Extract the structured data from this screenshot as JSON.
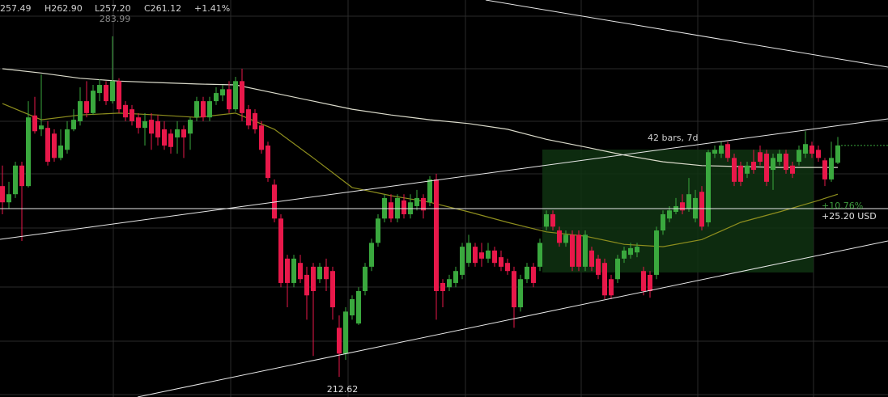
{
  "chart_data": {
    "type": "candlestick",
    "header": {
      "open": "257.49",
      "high": "H262.90",
      "low": "L257.20",
      "close": "C261.12",
      "change": "+1.41%"
    },
    "annotations": [
      "283.99",
      "212.62"
    ],
    "measure": {
      "label": "42 bars, 7d",
      "change_pct": "+10.76%",
      "change": "+25.20 USD"
    },
    "ylim": [
      208.4,
      291.6
    ],
    "up_color": "#3aa83e",
    "down_color": "#e8184a",
    "open": [
      252.6,
      249.2,
      250.9,
      256.9,
      252.6,
      267.4,
      264.5,
      264.8,
      263.6,
      258.5,
      260.2,
      264.5,
      266.2,
      270.4,
      267.9,
      272.1,
      273.8,
      270.4,
      274.6,
      269.6,
      268.7,
      267.0,
      264.8,
      266.5,
      266.2,
      264.5,
      263.6,
      262.8,
      264.5,
      263.6,
      267.0,
      270.4,
      267.0,
      270.4,
      271.6,
      272.9,
      268.7,
      274.6,
      268.7,
      267.9,
      265.3,
      261.1,
      252.9,
      245.8,
      237.4,
      232.3,
      236.5,
      234.0,
      235.7,
      233.1,
      235.7,
      234.8,
      222.9,
      217.5,
      225.5,
      223.8,
      230.6,
      235.7,
      240.7,
      245.8,
      249.2,
      245.8,
      249.6,
      246.7,
      248.4,
      250.1,
      249.2,
      254.0,
      232.3,
      231.4,
      232.3,
      234.0,
      236.5,
      239.9,
      238.7,
      237.4,
      239.1,
      237.7,
      236.5,
      234.8,
      227.2,
      233.1,
      235.7,
      235.7,
      244.1,
      246.7,
      243.3,
      240.7,
      242.4,
      242.4,
      235.7,
      239.1,
      237.4,
      236.5,
      233.1,
      233.1,
      237.4,
      238.2,
      238.7,
      234.8,
      234.0,
      234.0,
      243.3,
      245.8,
      247.2,
      249.2,
      247.9,
      245.8,
      251.4,
      245.0,
      259.4,
      259.4,
      261.4,
      258.5,
      256.9,
      255.2,
      257.7,
      259.7,
      259.4,
      256.0,
      257.7,
      259.4,
      256.9,
      257.7,
      259.4,
      261.1,
      260.2,
      258.0,
      254.0,
      257.49
    ],
    "high": [
      256.9,
      253.5,
      257.7,
      257.7,
      270.4,
      271.3,
      276.0,
      266.2,
      264.5,
      264.5,
      266.2,
      268.7,
      273.3,
      274.6,
      273.8,
      275.0,
      274.6,
      283.99,
      275.2,
      270.4,
      269.6,
      267.9,
      267.9,
      267.9,
      267.5,
      266.2,
      264.5,
      266.2,
      265.3,
      267.0,
      271.3,
      271.3,
      271.3,
      273.3,
      273.8,
      274.6,
      275.5,
      277.2,
      269.6,
      268.7,
      266.2,
      261.9,
      254.0,
      246.7,
      238.2,
      238.2,
      238.2,
      235.7,
      236.5,
      236.5,
      237.4,
      235.7,
      225.5,
      227.2,
      229.7,
      231.4,
      236.5,
      241.6,
      246.7,
      250.9,
      250.9,
      250.9,
      250.9,
      250.9,
      251.8,
      250.9,
      254.7,
      255.2,
      233.1,
      234.0,
      235.7,
      240.7,
      242.4,
      240.7,
      240.7,
      240.7,
      239.9,
      239.1,
      237.4,
      235.7,
      234.0,
      236.5,
      236.5,
      241.6,
      247.5,
      247.5,
      244.1,
      243.3,
      243.3,
      243.3,
      243.3,
      239.9,
      238.2,
      237.4,
      234.0,
      238.2,
      239.9,
      240.7,
      240.7,
      235.7,
      234.8,
      244.1,
      247.5,
      248.4,
      250.1,
      250.9,
      254.3,
      251.8,
      252.6,
      260.2,
      261.1,
      261.9,
      261.9,
      259.4,
      257.7,
      257.7,
      260.2,
      261.1,
      260.2,
      259.4,
      260.2,
      260.2,
      257.7,
      261.1,
      264.1,
      261.9,
      261.1,
      258.5,
      261.9,
      262.9
    ],
    "low": [
      246.7,
      247.9,
      250.1,
      241.1,
      252.3,
      263.6,
      263.1,
      256.9,
      257.7,
      258.0,
      259.4,
      264.1,
      265.3,
      267.0,
      267.5,
      270.4,
      269.6,
      269.9,
      267.9,
      266.2,
      265.3,
      263.6,
      261.1,
      260.2,
      261.1,
      260.2,
      259.4,
      259.4,
      258.5,
      260.2,
      266.2,
      266.2,
      266.2,
      269.6,
      270.4,
      267.9,
      268.2,
      266.2,
      264.5,
      263.6,
      259.4,
      253.5,
      245.0,
      231.4,
      227.2,
      231.4,
      232.3,
      224.6,
      217.0,
      232.3,
      230.6,
      224.6,
      212.62,
      216.2,
      224.6,
      223.5,
      229.7,
      234.8,
      239.9,
      245.0,
      245.0,
      245.0,
      245.8,
      245.8,
      247.5,
      245.8,
      248.4,
      224.6,
      227.2,
      230.6,
      231.4,
      233.1,
      235.7,
      235.7,
      235.7,
      236.5,
      235.7,
      234.8,
      234.0,
      222.9,
      226.3,
      232.3,
      231.4,
      234.8,
      243.3,
      243.3,
      239.9,
      239.9,
      234.8,
      234.8,
      234.8,
      234.8,
      233.1,
      228.9,
      228.9,
      232.3,
      236.5,
      237.4,
      237.7,
      229.7,
      229.2,
      233.1,
      242.4,
      245.0,
      246.7,
      246.7,
      247.2,
      245.0,
      243.3,
      244.1,
      258.5,
      258.5,
      257.7,
      252.6,
      252.6,
      254.3,
      255.2,
      256.9,
      252.6,
      251.8,
      256.9,
      255.2,
      254.3,
      256.9,
      258.5,
      258.5,
      257.7,
      252.6,
      253.5,
      257.2
    ],
    "close": [
      249.2,
      250.9,
      256.9,
      252.6,
      267.0,
      264.1,
      265.3,
      257.7,
      258.5,
      261.1,
      264.5,
      266.5,
      270.4,
      267.9,
      272.6,
      273.8,
      270.4,
      274.6,
      268.7,
      267.0,
      266.2,
      264.8,
      266.2,
      263.6,
      262.8,
      261.1,
      260.8,
      264.5,
      262.8,
      266.5,
      270.4,
      267.0,
      270.4,
      272.1,
      272.9,
      268.7,
      274.6,
      267.9,
      265.3,
      264.5,
      260.2,
      254.3,
      245.8,
      232.3,
      232.3,
      237.4,
      233.1,
      229.7,
      230.6,
      235.7,
      233.1,
      227.2,
      217.5,
      226.3,
      228.9,
      230.6,
      235.7,
      240.7,
      245.8,
      250.1,
      245.8,
      250.1,
      246.7,
      249.2,
      250.1,
      247.5,
      254.0,
      230.6,
      230.6,
      233.1,
      234.8,
      239.9,
      240.7,
      236.5,
      237.4,
      239.1,
      236.5,
      235.7,
      234.8,
      227.2,
      233.1,
      235.7,
      232.3,
      240.7,
      246.7,
      244.1,
      240.7,
      242.4,
      235.7,
      235.7,
      242.4,
      235.7,
      234.0,
      229.7,
      229.7,
      237.4,
      239.1,
      239.6,
      239.9,
      230.6,
      230.6,
      243.3,
      246.7,
      247.5,
      248.4,
      247.5,
      250.9,
      250.1,
      244.1,
      259.7,
      260.2,
      261.1,
      258.5,
      253.5,
      253.5,
      256.9,
      256.0,
      257.7,
      253.5,
      258.5,
      259.4,
      256.0,
      255.2,
      260.2,
      261.4,
      259.4,
      258.5,
      254.0,
      258.5,
      261.12
    ],
    "series": [
      {
        "color": "#dcdccc",
        "x": [
          0,
          6,
          12,
          18,
          24,
          30,
          36,
          42,
          48,
          54,
          60,
          66,
          72,
          78,
          84,
          90,
          96,
          102,
          108,
          114,
          120,
          126,
          129
        ],
        "values": [
          277.2,
          276.3,
          275.2,
          274.6,
          274.3,
          274.0,
          273.8,
          272.1,
          270.4,
          268.7,
          267.5,
          266.5,
          265.7,
          264.5,
          262.4,
          260.8,
          259.1,
          257.7,
          256.9,
          256.7,
          256.5,
          256.5,
          256.5
        ]
      },
      {
        "color": "#8e8e1e",
        "x": [
          0,
          6,
          12,
          18,
          24,
          30,
          36,
          42,
          48,
          54,
          60,
          66,
          72,
          78,
          84,
          90,
          96,
          102,
          108,
          114,
          120,
          126,
          129
        ],
        "values": [
          269.9,
          266.5,
          267.5,
          267.9,
          267.5,
          267.0,
          267.9,
          264.5,
          258.5,
          252.3,
          250.6,
          249.2,
          247.2,
          245.0,
          243.0,
          242.1,
          240.4,
          239.9,
          241.4,
          245.0,
          247.2,
          249.6,
          250.9
        ]
      }
    ]
  }
}
